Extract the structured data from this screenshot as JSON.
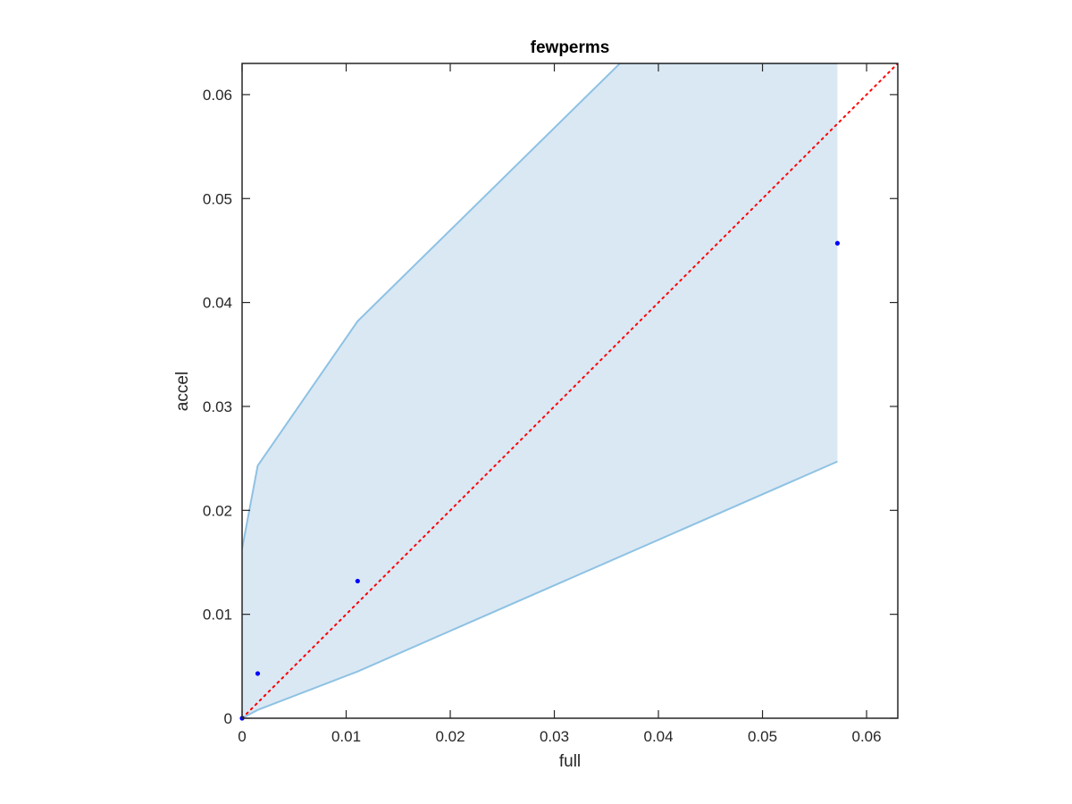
{
  "chart_data": {
    "type": "scatter",
    "title": "fewperms",
    "xlabel": "full",
    "ylabel": "accel",
    "xlim": [
      0,
      0.063
    ],
    "ylim": [
      0,
      0.063
    ],
    "x_ticks": [
      0,
      0.01,
      0.02,
      0.03,
      0.04,
      0.05,
      0.06
    ],
    "x_tick_labels": [
      "0",
      "0.01",
      "0.02",
      "0.03",
      "0.04",
      "0.05",
      "0.06"
    ],
    "y_ticks": [
      0,
      0.01,
      0.02,
      0.03,
      0.04,
      0.05,
      0.06
    ],
    "y_tick_labels": [
      "0",
      "0.01",
      "0.02",
      "0.03",
      "0.04",
      "0.05",
      "0.06"
    ],
    "grid": false,
    "box": true,
    "series": [
      {
        "type": "scatter",
        "color": "#0000ff",
        "points": [
          {
            "x": 0,
            "y": 0
          },
          {
            "x": 0.0015,
            "y": 0.0043
          },
          {
            "x": 0.0111,
            "y": 0.0132
          },
          {
            "x": 0.0572,
            "y": 0.0457
          }
        ]
      },
      {
        "type": "area",
        "fill": "#dae8f4",
        "edge_color": "#8ec2e3",
        "upper": [
          {
            "x": 0,
            "y": 0.0163
          },
          {
            "x": 0.0015,
            "y": 0.0243
          },
          {
            "x": 0.0111,
            "y": 0.0382
          },
          {
            "x": 0.0363,
            "y": 0.063
          },
          {
            "x": 0.0572,
            "y": 0.063
          }
        ],
        "lower": [
          {
            "x": 0,
            "y": 0
          },
          {
            "x": 0.0015,
            "y": 0.0008
          },
          {
            "x": 0.0111,
            "y": 0.0045
          },
          {
            "x": 0.0572,
            "y": 0.0247
          }
        ]
      },
      {
        "type": "line",
        "style": "dotted",
        "color": "#ff0000",
        "points": [
          {
            "x": 0,
            "y": 0
          },
          {
            "x": 0.063,
            "y": 0.063
          }
        ]
      }
    ]
  }
}
